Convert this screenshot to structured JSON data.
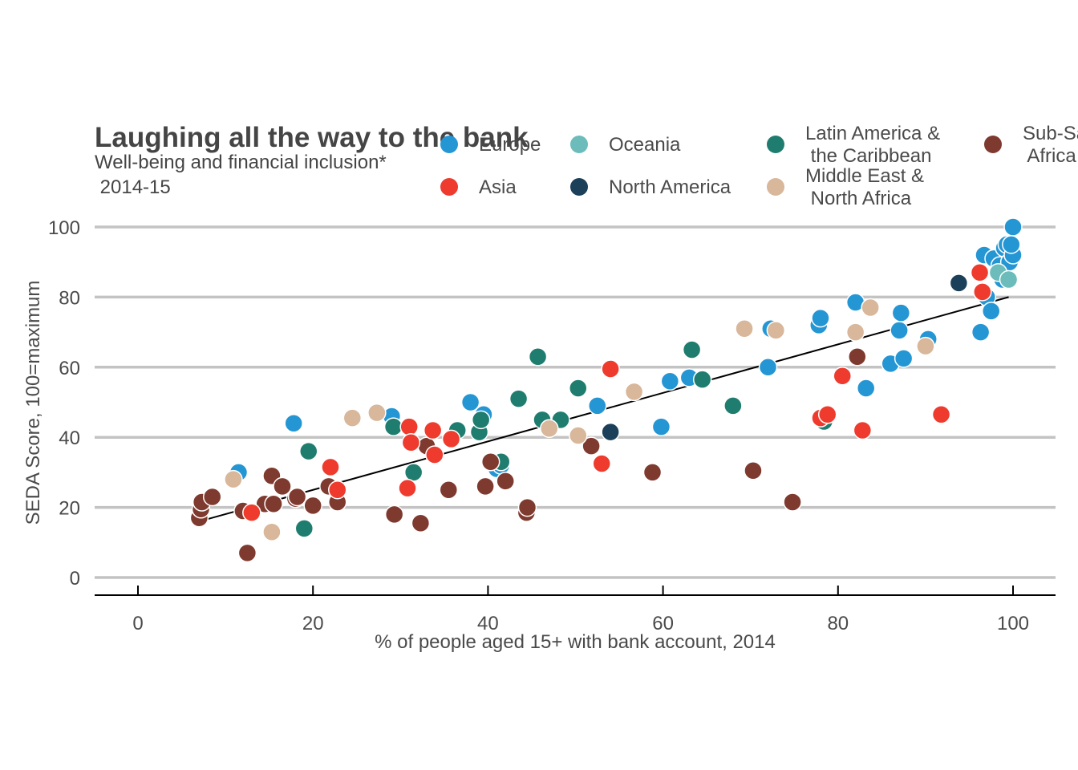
{
  "chart_data": {
    "type": "scatter",
    "title": "Laughing all the way to the bank",
    "subtitle_lines": [
      "Well-being and financial inclusion*",
      " 2014-15"
    ],
    "xlabel": "% of people aged 15+ with bank account, 2014",
    "ylabel": "SEDA Score, 100=maximum",
    "xlim": [
      -5,
      105
    ],
    "ylim": [
      0,
      100
    ],
    "xticks": [
      0,
      20,
      40,
      60,
      80,
      100
    ],
    "yticks": [
      0,
      20,
      40,
      60,
      80,
      100
    ],
    "grid": "horizontal",
    "legend_position": "top",
    "trend_line": {
      "x": [
        7,
        99.5
      ],
      "y": [
        16,
        80
      ]
    },
    "series": [
      {
        "name": "Europe",
        "label_lines": [
          "Europe"
        ],
        "color": "#2596d4",
        "points": [
          [
            11.5,
            30
          ],
          [
            17.8,
            44
          ],
          [
            29,
            46
          ],
          [
            38,
            50
          ],
          [
            39.5,
            46.5
          ],
          [
            41,
            31
          ],
          [
            52.5,
            49
          ],
          [
            59.8,
            43
          ],
          [
            60.8,
            56
          ],
          [
            63,
            57
          ],
          [
            72,
            60
          ],
          [
            72.3,
            71
          ],
          [
            77.8,
            72
          ],
          [
            78,
            74
          ],
          [
            82,
            78.5
          ],
          [
            83.2,
            54
          ],
          [
            86,
            61
          ],
          [
            87,
            70.5
          ],
          [
            87.2,
            75.5
          ],
          [
            87.5,
            62.5
          ],
          [
            90.3,
            68
          ],
          [
            96.3,
            70
          ],
          [
            96.7,
            92
          ],
          [
            97,
            80
          ],
          [
            97.5,
            76
          ],
          [
            97.8,
            91
          ],
          [
            98.5,
            89
          ],
          [
            98.8,
            85
          ],
          [
            99,
            94
          ],
          [
            99.3,
            95
          ],
          [
            99.6,
            90
          ],
          [
            100,
            92
          ],
          [
            100,
            100
          ],
          [
            99.8,
            95
          ],
          [
            41.5,
            32
          ]
        ]
      },
      {
        "name": "Oceania",
        "label_lines": [
          "Oceania"
        ],
        "color": "#6bbcba",
        "points": [
          [
            98.3,
            87
          ],
          [
            99.5,
            85
          ]
        ]
      },
      {
        "name": "Latin America & the Caribbean",
        "label_lines": [
          "Latin America &",
          " the Caribbean"
        ],
        "color": "#1f7d6f",
        "points": [
          [
            19,
            14
          ],
          [
            19.5,
            36
          ],
          [
            29.2,
            43
          ],
          [
            31.5,
            30
          ],
          [
            36.5,
            42
          ],
          [
            39,
            41.5
          ],
          [
            39.2,
            45
          ],
          [
            41.5,
            33
          ],
          [
            43.5,
            51
          ],
          [
            45.7,
            63
          ],
          [
            46.2,
            45
          ],
          [
            48.3,
            45
          ],
          [
            50.3,
            54
          ],
          [
            63.3,
            65
          ],
          [
            64.5,
            56.5
          ],
          [
            68,
            49
          ],
          [
            78.4,
            44.5
          ]
        ]
      },
      {
        "name": "Sub-Saharan Africa",
        "label_lines": [
          "Sub-Saharan",
          " Africa"
        ],
        "color": "#7f3a2f",
        "points": [
          [
            7,
            17
          ],
          [
            7.2,
            19.5
          ],
          [
            7.3,
            21.5
          ],
          [
            8.5,
            23
          ],
          [
            12,
            19
          ],
          [
            12.5,
            7
          ],
          [
            14.5,
            21
          ],
          [
            15.3,
            29
          ],
          [
            15.5,
            21
          ],
          [
            16.5,
            26
          ],
          [
            18,
            22.5
          ],
          [
            18.2,
            23
          ],
          [
            20,
            20.5
          ],
          [
            21.8,
            26
          ],
          [
            22.8,
            21.5
          ],
          [
            29.3,
            18
          ],
          [
            32.3,
            15.5
          ],
          [
            33,
            37.5
          ],
          [
            35.5,
            25
          ],
          [
            39.7,
            26
          ],
          [
            40.3,
            33
          ],
          [
            42,
            27.5
          ],
          [
            44.4,
            18.5
          ],
          [
            44.5,
            20
          ],
          [
            51.8,
            37.5
          ],
          [
            58.8,
            30
          ],
          [
            70.3,
            30.5
          ],
          [
            74.8,
            21.5
          ],
          [
            82.2,
            63
          ]
        ]
      },
      {
        "name": "Asia",
        "label_lines": [
          "Asia"
        ],
        "color": "#ee3b2e",
        "points": [
          [
            13,
            18.5
          ],
          [
            22,
            31.5
          ],
          [
            22.8,
            25
          ],
          [
            30.8,
            25.5
          ],
          [
            31,
            43
          ],
          [
            31.2,
            38.5
          ],
          [
            33.7,
            42
          ],
          [
            33.9,
            35
          ],
          [
            35.8,
            39.5
          ],
          [
            53,
            32.5
          ],
          [
            54,
            59.5
          ],
          [
            78,
            45.5
          ],
          [
            78.8,
            46.5
          ],
          [
            80.5,
            57.5
          ],
          [
            82.8,
            42
          ],
          [
            91.8,
            46.5
          ],
          [
            96.2,
            87
          ],
          [
            96.5,
            81.5
          ]
        ]
      },
      {
        "name": "North America",
        "label_lines": [
          "North America"
        ],
        "color": "#1c4059",
        "points": [
          [
            54,
            41.5
          ],
          [
            93.8,
            84
          ]
        ]
      },
      {
        "name": "Middle East & North Africa",
        "label_lines": [
          "Middle East &",
          " North Africa"
        ],
        "color": "#d8b79a",
        "points": [
          [
            10.9,
            28
          ],
          [
            15.3,
            13
          ],
          [
            24.5,
            45.5
          ],
          [
            27.3,
            47
          ],
          [
            47,
            42.5
          ],
          [
            50.3,
            40.5
          ],
          [
            56.7,
            53
          ],
          [
            69.3,
            71
          ],
          [
            72.9,
            70.5
          ],
          [
            82,
            70
          ],
          [
            83.7,
            77
          ],
          [
            90,
            66
          ]
        ]
      }
    ]
  }
}
